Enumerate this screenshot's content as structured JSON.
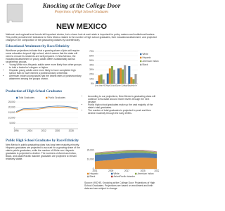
{
  "header": {
    "title": "Knocking at the College Door",
    "subtitle": "Projections of High School Graduates",
    "state": "NEW MEXICO"
  },
  "intro": "National- and regional-level trends tell important stories, but a closer look at each state is important for policy makers and institutional leaders. This profile provides brief indicators for New Mexico related to the number of high school graduates, their educational attainment, and projected changes in the composition of the graduating classes by race/ethnicity.",
  "sections": [
    {
      "heading": "Educational Attainment by Race/Ethnicity",
      "paragraphs": [
        "Workforce projections indicate that a growing share of jobs will require some education beyond high school, which means that the state will need to ensure its residents are well prepared. In New Mexico, the educational attainment of young adults differs substantially across racial/ethnic groups."
      ],
      "bullets": [
        "Young White non-Hispanic adults were more likely than other groups to hold a bachelor's degree or higher.",
        "Hispanic young adults were more likely to have completed high school than to have earned a postsecondary credential.",
        "American Indian young adults had the lowest rates of postsecondary attainment among the groups shown."
      ]
    },
    {
      "heading": "Production of High School Graduates",
      "paragraphs": [],
      "bullets": [
        "According to our projections, New Mexico's graduating class will continue to fluctuate around recent levels through the next decade.",
        "Public high school graduates make up the vast majority of the state's total graduates.",
        "The number of total graduates is projected to peak and then decline modestly through the early 2030s."
      ]
    },
    {
      "heading": "Public High School Graduates by Race/Ethnicity",
      "paragraphs": [
        "New Mexico's public graduating class has long been majority-minority. Hispanic graduates are projected to account for a growing share of the state's public graduates, while the number of White non-Hispanic graduates is projected to decline. The numbers of American Indian, Black, and Asian/Pacific Islander graduates are projected to remain relatively stable."
      ],
      "bullets": []
    }
  ],
  "footer": "Source: WICHE, Knocking at the College Door: Projections of High School Graduates. Projections are based on enrollment and birth data and are subject to change.",
  "chart_data": [
    {
      "type": "bar",
      "categories": [
        "Less than HS",
        "High School",
        "Some College",
        "Bachelor's+"
      ],
      "series": [
        {
          "name": "White",
          "color": "#3b6ea5",
          "values": [
            6,
            22,
            33,
            38
          ]
        },
        {
          "name": "Hispanic",
          "color": "#e08a2c",
          "values": [
            18,
            33,
            34,
            14
          ]
        },
        {
          "name": "American Indian",
          "color": "#8aa84b",
          "values": [
            20,
            38,
            31,
            10
          ]
        },
        {
          "name": "Black",
          "color": "#9e9e9e",
          "values": [
            9,
            30,
            40,
            21
          ]
        }
      ],
      "ylim": [
        0,
        70
      ],
      "yticks": [
        {
          "value": 0,
          "label": "0%"
        },
        {
          "value": 10,
          "label": "10%"
        },
        {
          "value": 20,
          "label": "20%"
        },
        {
          "value": 30,
          "label": "30%"
        },
        {
          "value": 40,
          "label": "40%"
        },
        {
          "value": 50,
          "label": "50%"
        },
        {
          "value": 60,
          "label": "60%"
        },
        {
          "value": 70,
          "label": "70%"
        }
      ],
      "grid": true,
      "legend": "right"
    },
    {
      "type": "line",
      "x": [
        1996,
        2000,
        2004,
        2008,
        2012,
        2016,
        2020,
        2024,
        2028,
        2032
      ],
      "series": [
        {
          "name": "Total Graduates",
          "color": "#3b6ea5",
          "values": [
            16000,
            18600,
            18900,
            19200,
            20100,
            20800,
            21200,
            21000,
            20300,
            19200
          ]
        },
        {
          "name": "Public Graduates",
          "color": "#e08a2c",
          "values": [
            15200,
            17800,
            17900,
            18000,
            19000,
            19800,
            20200,
            20000,
            19300,
            18200
          ]
        }
      ],
      "xlim": [
        1996,
        2032
      ],
      "xticks": [
        1996,
        2004,
        2012,
        2020,
        2028
      ],
      "ylim": [
        0,
        25000
      ],
      "yticks": [
        0,
        {
          "value": 5000,
          "label": "5,000"
        },
        {
          "value": 10000,
          "label": "10,000"
        },
        {
          "value": 15000,
          "label": "15,000"
        },
        {
          "value": 20000,
          "label": "20,000"
        },
        {
          "value": 25000,
          "label": "25,000"
        }
      ],
      "grid": true,
      "legend": "top"
    },
    {
      "type": "area",
      "x": [
        2001,
        2005,
        2009,
        2013,
        2017,
        2021,
        2025,
        2029,
        2032
      ],
      "series": [
        {
          "name": "Hispanic",
          "color": "#e08a2c",
          "values": [
            8000,
            8800,
            9500,
            10500,
            11300,
            11800,
            12000,
            11700,
            11200
          ]
        },
        {
          "name": "White",
          "color": "#3b6ea5",
          "values": [
            7000,
            6800,
            6400,
            6000,
            5800,
            5500,
            5200,
            4900,
            4700
          ]
        },
        {
          "name": "American Indian",
          "color": "#8aa84b",
          "values": [
            1800,
            1900,
            2000,
            2100,
            2200,
            2200,
            2100,
            2000,
            1900
          ]
        },
        {
          "name": "Black",
          "color": "#9e9e9e",
          "values": [
            400,
            450,
            500,
            500,
            550,
            550,
            500,
            500,
            480
          ]
        },
        {
          "name": "Asian/Pacific Islander",
          "color": "#b0413e",
          "values": [
            250,
            300,
            350,
            380,
            400,
            420,
            430,
            430,
            420
          ]
        }
      ],
      "xlim": [
        2001,
        2032
      ],
      "xticks": [
        2001,
        2009,
        2017,
        2025,
        2032
      ],
      "ylim": [
        0,
        25000
      ],
      "yticks": [
        0,
        {
          "value": 10000,
          "label": "10,000"
        },
        {
          "value": 20000,
          "label": "20,000"
        }
      ],
      "grid": false,
      "legend": "bottom"
    }
  ]
}
